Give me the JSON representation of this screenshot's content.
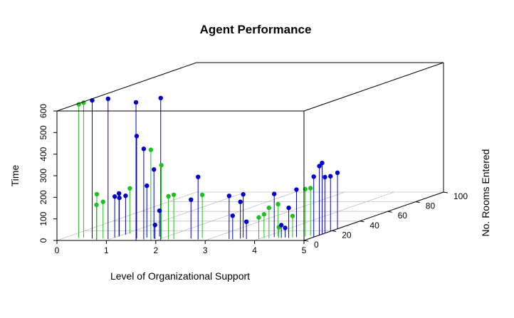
{
  "chart_data": {
    "type": "scatter",
    "title": "Agent Performance",
    "xlabel": "Level of Organizational Support",
    "ylabel": "No. Rooms Entered",
    "zlabel": "Time",
    "x_ticks": [
      "0",
      "1",
      "2",
      "3",
      "4",
      "5"
    ],
    "y_ticks": [
      "0",
      "20",
      "40",
      "60",
      "80",
      "100"
    ],
    "z_ticks": [
      "0",
      "100",
      "200",
      "300",
      "400",
      "500",
      "600"
    ],
    "xlim": [
      0,
      5
    ],
    "ylim": [
      0,
      100
    ],
    "zlim": [
      0,
      600
    ],
    "colors": {
      "blue": "#0000cd",
      "green": "#1fbf1f",
      "box": "#000000",
      "grid": "#c0c0c0"
    },
    "points": [
      {
        "x": 2.1,
        "y": 0,
        "z": 660,
        "color": "blue"
      },
      {
        "x": 1.6,
        "y": 0,
        "z": 640,
        "color": "blue"
      },
      {
        "x": 1.7,
        "y": 2,
        "z": 420,
        "color": "blue"
      },
      {
        "x": 1.9,
        "y": 0,
        "z": 420,
        "color": "green"
      },
      {
        "x": 2.0,
        "y": 4,
        "z": 340,
        "color": "green"
      },
      {
        "x": 1.65,
        "y": 6,
        "z": 240,
        "color": "blue"
      },
      {
        "x": 1.85,
        "y": 4,
        "z": 320,
        "color": "blue"
      },
      {
        "x": 1.9,
        "y": 3,
        "z": 65,
        "color": "blue"
      },
      {
        "x": 1.85,
        "y": 8,
        "z": 120,
        "color": "blue"
      },
      {
        "x": 1.5,
        "y": 4,
        "z": 475,
        "color": "blue"
      },
      {
        "x": 2.8,
        "y": 2,
        "z": 290,
        "color": "blue"
      },
      {
        "x": 0.3,
        "y": 5,
        "z": 620,
        "color": "green"
      },
      {
        "x": 0.37,
        "y": 6,
        "z": 625,
        "color": "green"
      },
      {
        "x": 0.6,
        "y": 4,
        "z": 640,
        "color": "blue"
      },
      {
        "x": 0.95,
        "y": 3,
        "z": 650,
        "color": "blue"
      },
      {
        "x": 0.75,
        "y": 2,
        "z": 210,
        "color": "green"
      },
      {
        "x": 0.8,
        "y": 0,
        "z": 165,
        "color": "green"
      },
      {
        "x": 0.82,
        "y": 4,
        "z": 170,
        "color": "green"
      },
      {
        "x": 1.0,
        "y": 6,
        "z": 190,
        "color": "blue"
      },
      {
        "x": 1.03,
        "y": 8,
        "z": 200,
        "color": "blue"
      },
      {
        "x": 0.98,
        "y": 10,
        "z": 175,
        "color": "blue"
      },
      {
        "x": 1.05,
        "y": 12,
        "z": 180,
        "color": "blue"
      },
      {
        "x": 1.08,
        "y": 14,
        "z": 210,
        "color": "green"
      },
      {
        "x": 2.2,
        "y": 2,
        "z": 200,
        "color": "green"
      },
      {
        "x": 2.28,
        "y": 3,
        "z": 205,
        "color": "green"
      },
      {
        "x": 2.6,
        "y": 4,
        "z": 180,
        "color": "blue"
      },
      {
        "x": 2.8,
        "y": 5,
        "z": 200,
        "color": "green"
      },
      {
        "x": 3.4,
        "y": 3,
        "z": 200,
        "color": "blue"
      },
      {
        "x": 3.5,
        "y": 2,
        "z": 110,
        "color": "blue"
      },
      {
        "x": 3.6,
        "y": 4,
        "z": 170,
        "color": "blue"
      },
      {
        "x": 3.6,
        "y": 6,
        "z": 200,
        "color": "blue"
      },
      {
        "x": 3.75,
        "y": 3,
        "z": 80,
        "color": "blue"
      },
      {
        "x": 4.0,
        "y": 3,
        "z": 100,
        "color": "green"
      },
      {
        "x": 4.05,
        "y": 5,
        "z": 110,
        "color": "green"
      },
      {
        "x": 4.15,
        "y": 5,
        "z": 140,
        "color": "green"
      },
      {
        "x": 4.2,
        "y": 7,
        "z": 200,
        "color": "blue"
      },
      {
        "x": 4.25,
        "y": 8,
        "z": 150,
        "color": "green"
      },
      {
        "x": 4.35,
        "y": 5,
        "z": 50,
        "color": "green"
      },
      {
        "x": 4.4,
        "y": 5,
        "z": 60,
        "color": "blue"
      },
      {
        "x": 4.45,
        "y": 6,
        "z": 45,
        "color": "blue"
      },
      {
        "x": 4.55,
        "y": 5,
        "z": 140,
        "color": "blue"
      },
      {
        "x": 4.6,
        "y": 6,
        "z": 100,
        "color": "green"
      },
      {
        "x": 4.65,
        "y": 7,
        "z": 220,
        "color": "blue"
      },
      {
        "x": 4.8,
        "y": 8,
        "z": 220,
        "color": "green"
      },
      {
        "x": 4.85,
        "y": 10,
        "z": 220,
        "color": "green"
      },
      {
        "x": 5.0,
        "y": 7,
        "z": 280,
        "color": "blue"
      },
      {
        "x": 5.0,
        "y": 11,
        "z": 320,
        "color": "blue"
      },
      {
        "x": 5.0,
        "y": 13,
        "z": 330,
        "color": "blue"
      },
      {
        "x": 5.0,
        "y": 15,
        "z": 260,
        "color": "blue"
      },
      {
        "x": 5.0,
        "y": 19,
        "z": 255,
        "color": "blue"
      },
      {
        "x": 5.0,
        "y": 24,
        "z": 260,
        "color": "blue"
      }
    ]
  }
}
